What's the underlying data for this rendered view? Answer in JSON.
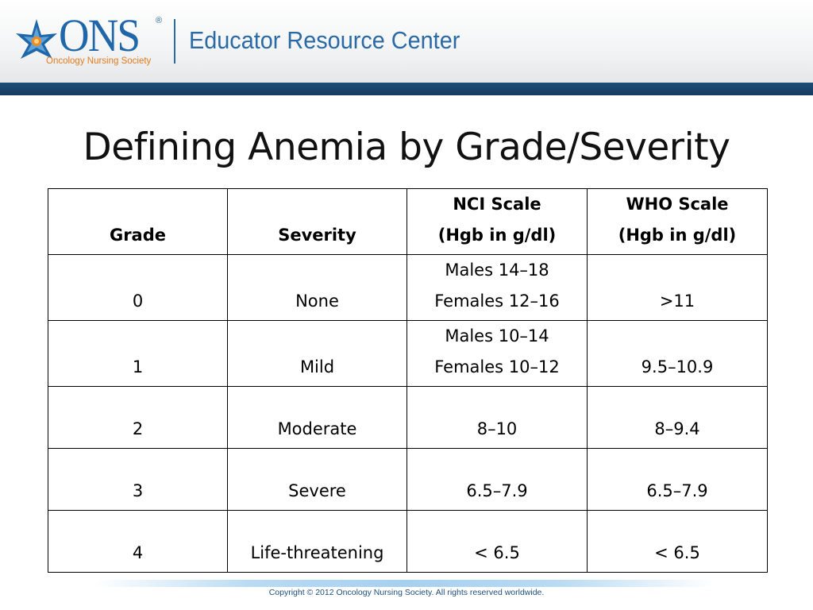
{
  "header": {
    "logo_word": "ONS",
    "logo_registered": "®",
    "logo_tagline": "Oncology Nursing Society",
    "title": "Educator Resource Center",
    "brand_blue": "#2a6aa5",
    "accent_orange": "#e07b1f"
  },
  "slide": {
    "title": "Defining Anemia by Grade/Severity"
  },
  "table": {
    "headers": {
      "grade": "Grade",
      "severity": "Severity",
      "nci_line1": "NCI Scale",
      "nci_line2": "(Hgb in g/dl)",
      "who_line1": "WHO Scale",
      "who_line2": "(Hgb in g/dl)"
    },
    "rows": [
      {
        "grade": "0",
        "severity": "None",
        "nci_line1": "Males 14–18",
        "nci_line2": "Females 12–16",
        "who": ">11"
      },
      {
        "grade": "1",
        "severity": "Mild",
        "nci_line1": "Males 10–14",
        "nci_line2": "Females 10–12",
        "who": "9.5–10.9"
      },
      {
        "grade": "2",
        "severity": "Moderate",
        "nci": "8–10",
        "who": "8–9.4"
      },
      {
        "grade": "3",
        "severity": "Severe",
        "nci": "6.5–7.9",
        "who": "6.5–7.9"
      },
      {
        "grade": "4",
        "severity": "Life-threatening",
        "nci": "< 6.5",
        "who": "< 6.5"
      }
    ]
  },
  "footer": {
    "copyright": "Copyright © 2012 Oncology Nursing Society. All rights reserved worldwide."
  }
}
